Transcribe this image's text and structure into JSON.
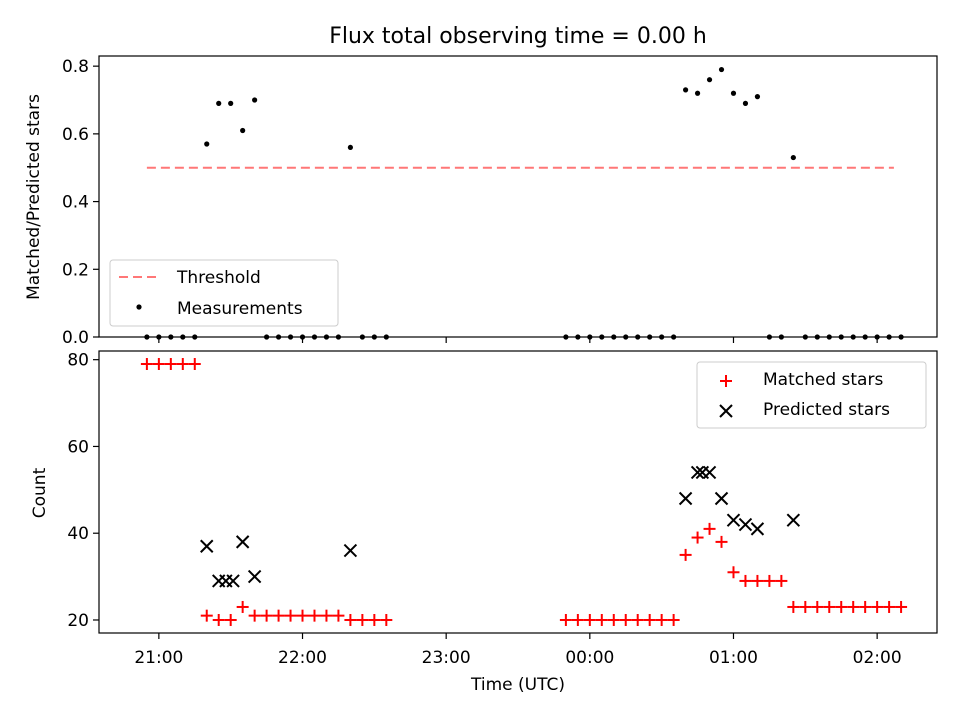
{
  "figure": {
    "title": "Flux total observing time = 0.00 h",
    "xlabel": "Time (UTC)"
  },
  "x_ticks": [
    "21:00",
    "22:00",
    "23:00",
    "00:00",
    "01:00",
    "02:00"
  ],
  "chart_data": [
    {
      "type": "scatter",
      "panel": "top",
      "title": "Flux total observing time = 0.00 h",
      "xlabel": "",
      "ylabel": "Matched/Predicted stars",
      "ylim": [
        0,
        0.83
      ],
      "yticks": [
        "0.0",
        "0.2",
        "0.4",
        "0.6",
        "0.8"
      ],
      "x_axis": "time (UTC)",
      "xlim": [
        "20:35",
        "02:25"
      ],
      "legend_position": "lower-left",
      "grid": false,
      "series": [
        {
          "name": "Threshold",
          "style": "dashed-line",
          "color": "#ff7777",
          "points": [
            [
              "20:55",
              0.5
            ],
            [
              "02:07",
              0.5
            ]
          ]
        },
        {
          "name": "Measurements",
          "style": "dot",
          "color": "#000000",
          "points": [
            [
              "20:55",
              0.0
            ],
            [
              "21:00",
              0.0
            ],
            [
              "21:05",
              0.0
            ],
            [
              "21:10",
              0.0
            ],
            [
              "21:15",
              0.0
            ],
            [
              "21:20",
              0.57
            ],
            [
              "21:25",
              0.69
            ],
            [
              "21:30",
              0.69
            ],
            [
              "21:35",
              0.61
            ],
            [
              "21:40",
              0.7
            ],
            [
              "21:45",
              0.0
            ],
            [
              "21:50",
              0.0
            ],
            [
              "21:55",
              0.0
            ],
            [
              "22:00",
              0.0
            ],
            [
              "22:05",
              0.0
            ],
            [
              "22:10",
              0.0
            ],
            [
              "22:15",
              0.0
            ],
            [
              "22:20",
              0.56
            ],
            [
              "22:25",
              0.0
            ],
            [
              "22:30",
              0.0
            ],
            [
              "22:35",
              0.0
            ],
            [
              "23:50",
              0.0
            ],
            [
              "23:55",
              0.0
            ],
            [
              "00:00",
              0.0
            ],
            [
              "00:05",
              0.0
            ],
            [
              "00:10",
              0.0
            ],
            [
              "00:15",
              0.0
            ],
            [
              "00:20",
              0.0
            ],
            [
              "00:25",
              0.0
            ],
            [
              "00:30",
              0.0
            ],
            [
              "00:35",
              0.0
            ],
            [
              "00:40",
              0.73
            ],
            [
              "00:45",
              0.72
            ],
            [
              "00:50",
              0.76
            ],
            [
              "00:55",
              0.79
            ],
            [
              "01:00",
              0.72
            ],
            [
              "01:05",
              0.69
            ],
            [
              "01:10",
              0.71
            ],
            [
              "01:15",
              0.0
            ],
            [
              "01:20",
              0.0
            ],
            [
              "01:25",
              0.53
            ],
            [
              "01:30",
              0.0
            ],
            [
              "01:35",
              0.0
            ],
            [
              "01:40",
              0.0
            ],
            [
              "01:45",
              0.0
            ],
            [
              "01:50",
              0.0
            ],
            [
              "01:55",
              0.0
            ],
            [
              "02:00",
              0.0
            ],
            [
              "02:05",
              0.0
            ],
            [
              "02:10",
              0.0
            ]
          ]
        }
      ]
    },
    {
      "type": "scatter",
      "panel": "bottom",
      "xlabel": "Time (UTC)",
      "ylabel": "Count",
      "ylim": [
        17,
        82
      ],
      "yticks": [
        "20",
        "40",
        "60",
        "80"
      ],
      "x_axis": "time (UTC)",
      "xlim": [
        "20:35",
        "02:25"
      ],
      "legend_position": "top-right",
      "grid": false,
      "series": [
        {
          "name": "Matched stars",
          "style": "plus",
          "color": "#ff0000",
          "points": [
            [
              "20:55",
              79
            ],
            [
              "21:00",
              79
            ],
            [
              "21:05",
              79
            ],
            [
              "21:10",
              79
            ],
            [
              "21:15",
              79
            ],
            [
              "21:20",
              21
            ],
            [
              "21:25",
              20
            ],
            [
              "21:30",
              20
            ],
            [
              "21:35",
              23
            ],
            [
              "21:40",
              21
            ],
            [
              "21:45",
              21
            ],
            [
              "21:50",
              21
            ],
            [
              "21:55",
              21
            ],
            [
              "22:00",
              21
            ],
            [
              "22:05",
              21
            ],
            [
              "22:10",
              21
            ],
            [
              "22:15",
              21
            ],
            [
              "22:20",
              20
            ],
            [
              "22:25",
              20
            ],
            [
              "22:30",
              20
            ],
            [
              "22:35",
              20
            ],
            [
              "23:50",
              20
            ],
            [
              "23:55",
              20
            ],
            [
              "00:00",
              20
            ],
            [
              "00:05",
              20
            ],
            [
              "00:10",
              20
            ],
            [
              "00:15",
              20
            ],
            [
              "00:20",
              20
            ],
            [
              "00:25",
              20
            ],
            [
              "00:30",
              20
            ],
            [
              "00:35",
              20
            ],
            [
              "00:40",
              35
            ],
            [
              "00:45",
              39
            ],
            [
              "00:50",
              41
            ],
            [
              "00:55",
              38
            ],
            [
              "01:00",
              31
            ],
            [
              "01:05",
              29
            ],
            [
              "01:10",
              29
            ],
            [
              "01:15",
              29
            ],
            [
              "01:20",
              29
            ],
            [
              "01:25",
              23
            ],
            [
              "01:30",
              23
            ],
            [
              "01:35",
              23
            ],
            [
              "01:40",
              23
            ],
            [
              "01:45",
              23
            ],
            [
              "01:50",
              23
            ],
            [
              "01:55",
              23
            ],
            [
              "02:00",
              23
            ],
            [
              "02:05",
              23
            ],
            [
              "02:10",
              23
            ]
          ]
        },
        {
          "name": "Predicted stars",
          "style": "x",
          "color": "#000000",
          "points": [
            [
              "21:20",
              37
            ],
            [
              "21:25",
              29
            ],
            [
              "21:28",
              29
            ],
            [
              "21:31",
              29
            ],
            [
              "21:35",
              38
            ],
            [
              "21:40",
              30
            ],
            [
              "22:20",
              36
            ],
            [
              "00:40",
              48
            ],
            [
              "00:45",
              54
            ],
            [
              "00:47",
              54
            ],
            [
              "00:50",
              54
            ],
            [
              "00:55",
              48
            ],
            [
              "01:00",
              43
            ],
            [
              "01:05",
              42
            ],
            [
              "01:10",
              41
            ],
            [
              "01:25",
              43
            ]
          ]
        }
      ]
    }
  ]
}
